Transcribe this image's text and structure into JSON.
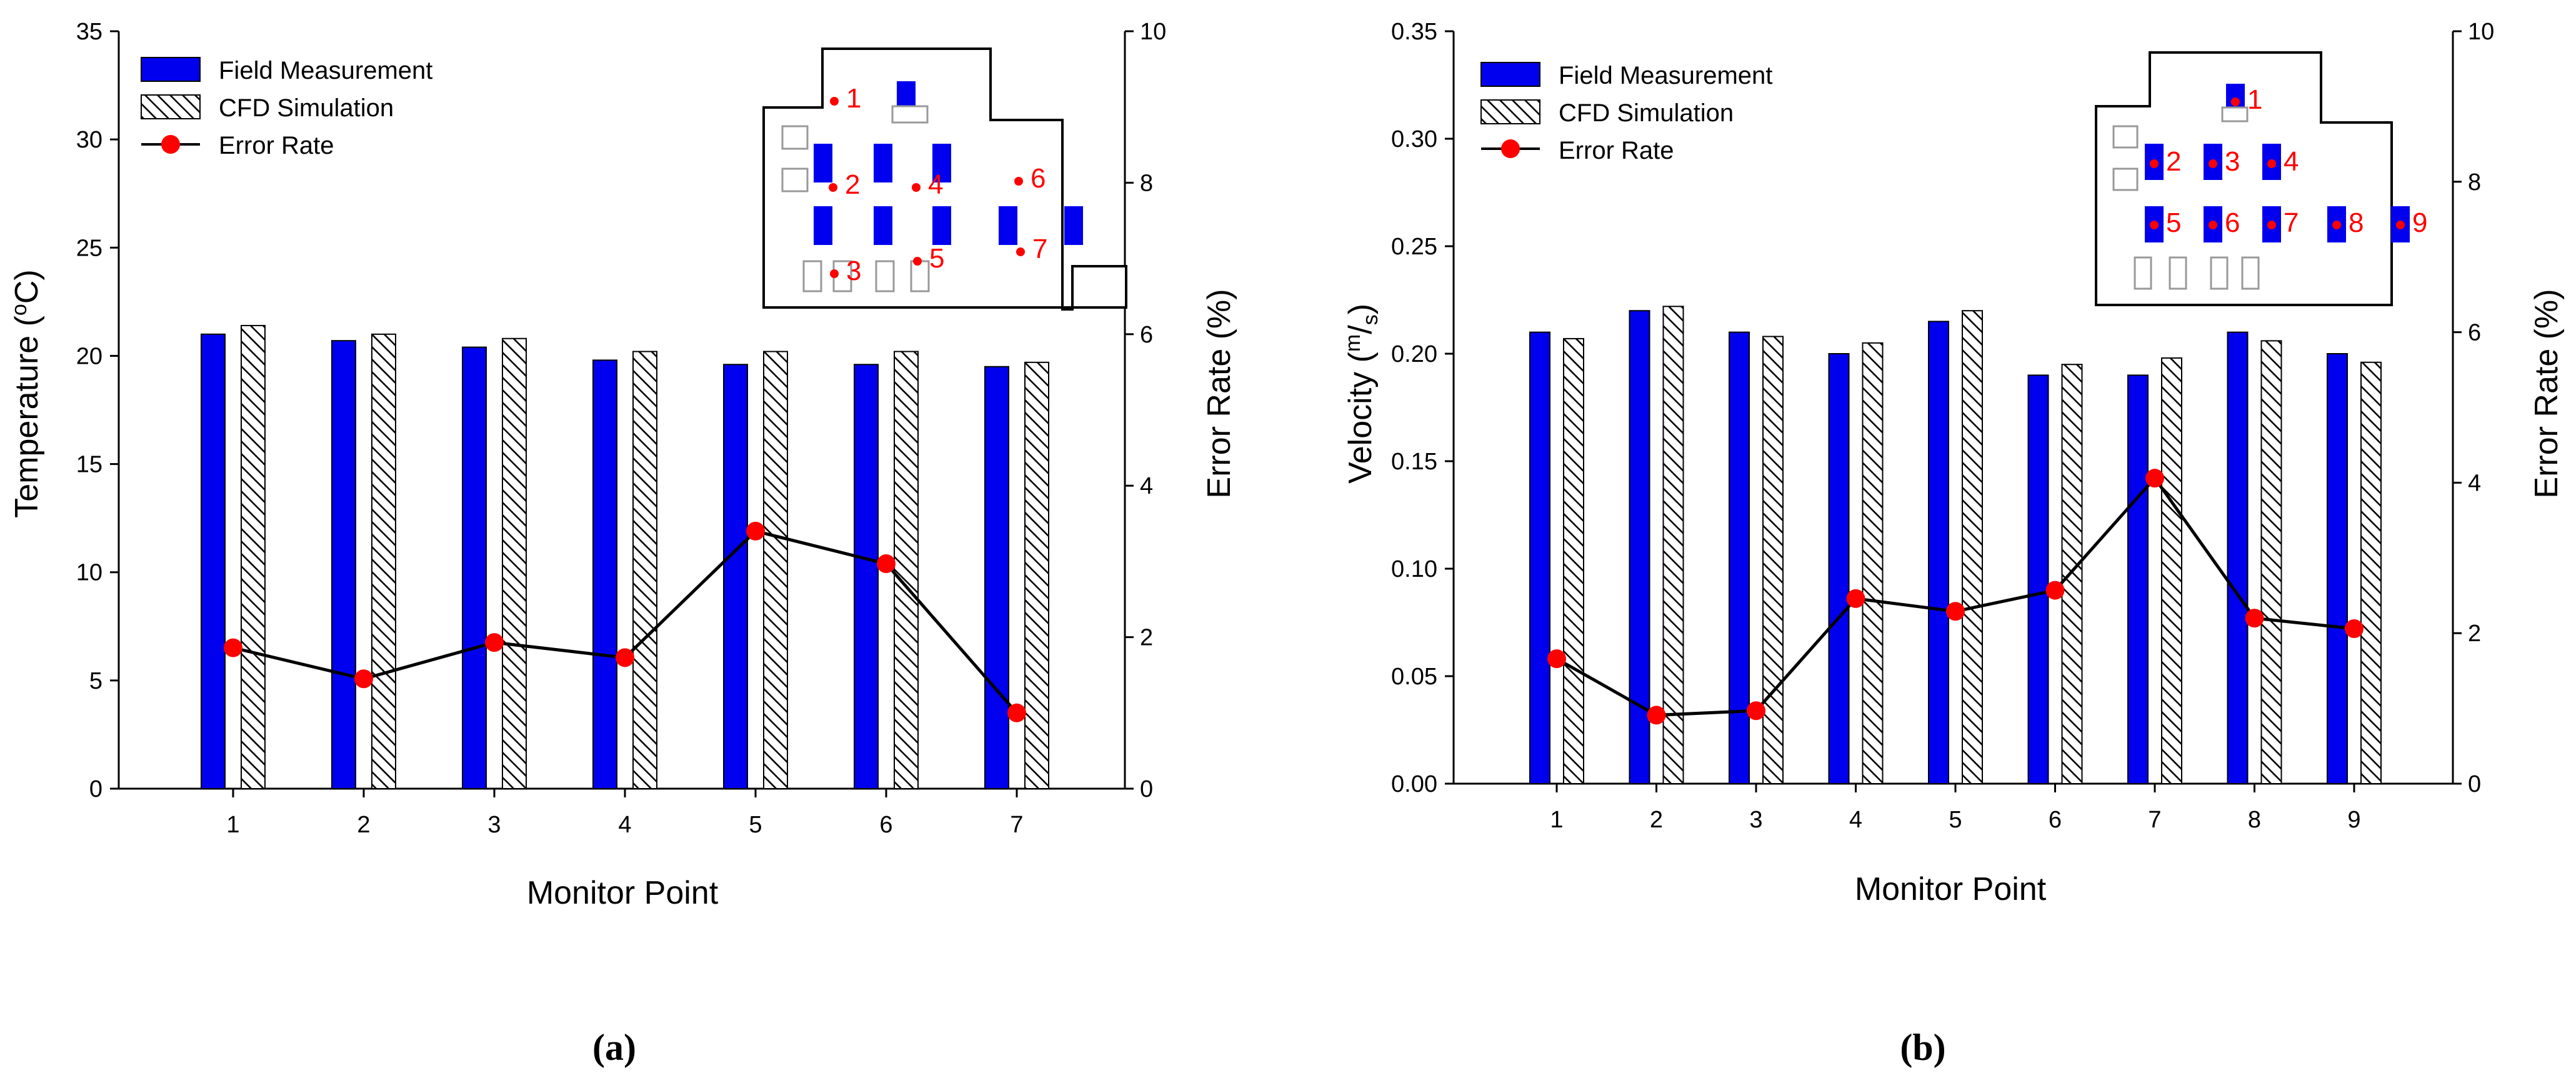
{
  "colors": {
    "field_fill": "#0000ee",
    "cfd_hatch": "#000000",
    "error_line": "#000000",
    "error_marker": "#ff0000",
    "inset_seat": "#0000ee"
  },
  "icons": {
    "legend_field": "blue-filled-rect-icon",
    "legend_cfd": "hatched-rect-icon",
    "legend_error": "red-dot-line-icon"
  },
  "chart_data": [
    {
      "type": "bar",
      "panel_label": "(a)",
      "categories": [
        "1",
        "2",
        "3",
        "4",
        "5",
        "6",
        "7"
      ],
      "xlabel": "Monitor Point",
      "ylabel": "Temperature (°C)",
      "ylabel_main": "Temperature (",
      "ylabel_sup": "o",
      "ylabel_unit": "C)",
      "ylim": [
        0,
        35
      ],
      "yticks": [
        "0",
        "5",
        "10",
        "15",
        "20",
        "25",
        "30",
        "35"
      ],
      "y2label": "Error Rate (%)",
      "y2lim": [
        0,
        10
      ],
      "y2ticks": [
        "0",
        "2",
        "4",
        "6",
        "8",
        "10"
      ],
      "legend_position": "top-left",
      "grid": false,
      "series": [
        {
          "name": "Field Measurement",
          "kind": "bar",
          "axis": "left",
          "values": [
            21.0,
            20.7,
            20.4,
            19.8,
            19.6,
            19.6,
            19.5
          ]
        },
        {
          "name": "CFD Simulation",
          "kind": "bar",
          "axis": "left",
          "values": [
            21.4,
            21.0,
            20.8,
            20.2,
            20.2,
            20.2,
            19.7
          ]
        },
        {
          "name": "Error Rate",
          "kind": "line",
          "axis": "right",
          "values": [
            1.86,
            1.45,
            1.93,
            1.73,
            3.4,
            2.97,
            1.0
          ]
        }
      ],
      "inset_labels": [
        "1",
        "2",
        "3",
        "4",
        "5",
        "6",
        "7"
      ]
    },
    {
      "type": "bar",
      "panel_label": "(b)",
      "categories": [
        "1",
        "2",
        "3",
        "4",
        "5",
        "6",
        "7",
        "8",
        "9"
      ],
      "xlabel": "Monitor Point",
      "ylabel": "Velocity (m/s)",
      "ylabel_main": "Velocity (",
      "ylabel_sup": "m",
      "ylabel_slash": "/",
      "ylabel_sub": "s",
      "ylabel_close": ")",
      "ylim": [
        0,
        0.35
      ],
      "yticks": [
        "0.00",
        "0.05",
        "0.10",
        "0.15",
        "0.20",
        "0.25",
        "0.30",
        "0.35"
      ],
      "y2label": "Error Rate (%)",
      "y2lim": [
        0,
        10
      ],
      "y2ticks": [
        "0",
        "2",
        "4",
        "6",
        "8",
        "10"
      ],
      "legend_position": "top-left",
      "grid": false,
      "series": [
        {
          "name": "Field Measurement",
          "kind": "bar",
          "axis": "left",
          "values": [
            0.21,
            0.22,
            0.21,
            0.2,
            0.215,
            0.19,
            0.19,
            0.21,
            0.2
          ]
        },
        {
          "name": "CFD Simulation",
          "kind": "bar",
          "axis": "left",
          "values": [
            0.207,
            0.222,
            0.208,
            0.205,
            0.22,
            0.195,
            0.198,
            0.206,
            0.196
          ]
        },
        {
          "name": "Error Rate",
          "kind": "line",
          "axis": "right",
          "values": [
            1.66,
            0.91,
            0.97,
            2.46,
            2.29,
            2.57,
            4.06,
            2.2,
            2.06
          ]
        }
      ],
      "inset_labels": [
        "1",
        "2",
        "3",
        "4",
        "5",
        "6",
        "7",
        "8",
        "9"
      ]
    }
  ]
}
